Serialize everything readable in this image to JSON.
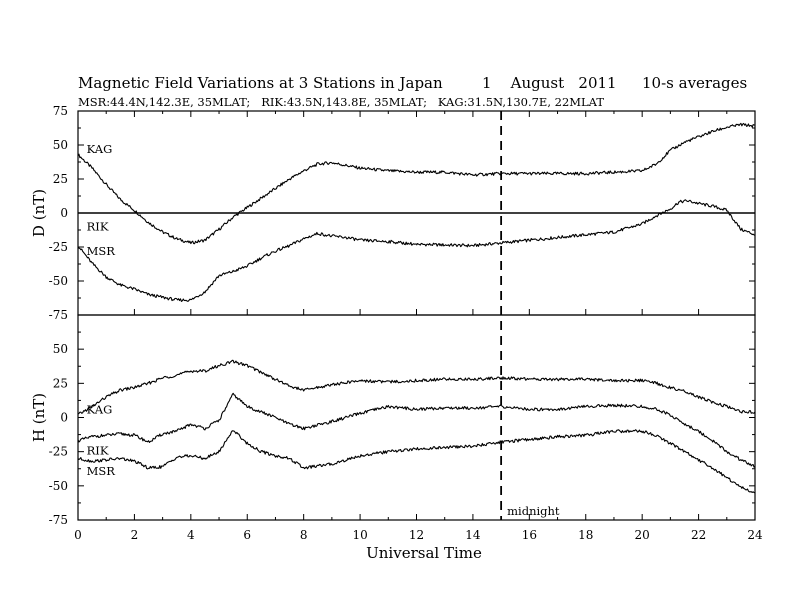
{
  "chart_data": [
    {
      "type": "line",
      "title": "Magnetic Field Variations at 3 Stations in Japan",
      "date_text": "1    August   2011",
      "averaging_text": "10-s averages",
      "subtitle": "MSR:44.4N,142.3E, 35MLAT;   RIK:43.5N,143.8E, 35MLAT;   KAG:31.5N,130.7E, 22MLAT",
      "xlabel": "Universal Time",
      "xlim": [
        0,
        24
      ],
      "xticks": [
        0,
        2,
        4,
        6,
        8,
        10,
        12,
        14,
        16,
        18,
        20,
        22,
        24
      ],
      "grid": false,
      "annotations": [
        {
          "text": "midnight",
          "x": 15,
          "style": "dashed vertical line"
        }
      ],
      "panels": [
        {
          "ylabel": "D (nT)",
          "ylim": [
            -75,
            75
          ],
          "yticks": [
            75,
            50,
            25,
            0,
            -25,
            -50,
            -75
          ],
          "zero_line": true,
          "series": [
            {
              "name": "KAG",
              "x": [
                0,
                0.5,
                1,
                1.5,
                2,
                2.5,
                3,
                3.5,
                4,
                4.5,
                5,
                5.5,
                6,
                6.5,
                7,
                7.5,
                8,
                8.5,
                9,
                9.5,
                10,
                11,
                12,
                13,
                14,
                15,
                16,
                17,
                18,
                19,
                20,
                20.5,
                21,
                21.5,
                22,
                22.5,
                23,
                23.5,
                24
              ],
              "y": [
                43,
                33,
                21,
                10,
                2,
                -7,
                -14,
                -19,
                -22,
                -20,
                -12,
                -3,
                4,
                11,
                18,
                25,
                31,
                36,
                37,
                35,
                33,
                31,
                30,
                30,
                28,
                29,
                29,
                29,
                29,
                30,
                31,
                36,
                46,
                52,
                56,
                60,
                63,
                65,
                64
              ]
            },
            {
              "name": "RIK",
              "x": [
                12,
                14,
                16,
                18,
                19,
                20,
                20.5,
                21,
                21.3,
                21.6,
                22,
                22.5,
                23,
                23.5,
                24
              ],
              "y": [
                -23,
                -24,
                -20,
                -16,
                -14,
                -8,
                -2,
                3,
                8,
                9,
                7,
                5,
                2,
                -12,
                -16
              ]
            },
            {
              "name": "MSR",
              "x": [
                0,
                0.5,
                1,
                1.5,
                2,
                2.5,
                3,
                3.5,
                4,
                4.5,
                5,
                5.5,
                6,
                6.5,
                7,
                7.5,
                8,
                8.5,
                9,
                9.5,
                10,
                11,
                12
              ],
              "y": [
                -24,
                -37,
                -47,
                -53,
                -56,
                -60,
                -62,
                -64,
                -64,
                -58,
                -46,
                -43,
                -39,
                -33,
                -28,
                -24,
                -19,
                -15,
                -17,
                -18,
                -20,
                -21,
                -23
              ]
            }
          ],
          "labels": [
            {
              "text": "KAG",
              "x": 0.2,
              "y": 47
            },
            {
              "text": "RIK",
              "x": 0.2,
              "y": -10
            },
            {
              "text": "MSR",
              "x": 0.2,
              "y": -28
            }
          ]
        },
        {
          "ylabel": "H (nT)",
          "ylim": [
            -75,
            75
          ],
          "yticks": [
            75,
            50,
            25,
            0,
            -25,
            -50,
            -75
          ],
          "zero_line": false,
          "series": [
            {
              "name": "KAG",
              "x": [
                0,
                0.5,
                1,
                1.5,
                2,
                2.5,
                3,
                3.5,
                4,
                4.5,
                5,
                5.5,
                6,
                6.5,
                7,
                7.5,
                8,
                9,
                10,
                11,
                12,
                13,
                14,
                15,
                16,
                17,
                18,
                19,
                20,
                20.5,
                21,
                21.5,
                22,
                22.5,
                23,
                23.5,
                24
              ],
              "y": [
                2,
                8,
                15,
                20,
                22,
                25,
                29,
                31,
                34,
                34,
                38,
                41,
                38,
                33,
                28,
                23,
                20,
                24,
                27,
                26,
                27,
                28,
                28,
                29,
                28,
                28,
                28,
                27,
                27,
                25,
                22,
                19,
                15,
                11,
                8,
                4,
                4
              ]
            },
            {
              "name": "RIK",
              "x": [
                0,
                0.5,
                1,
                1.5,
                2,
                2.5,
                3,
                3.5,
                4,
                4.5,
                5,
                5.5,
                6,
                6.5,
                7,
                7.5,
                8,
                9,
                10,
                11,
                12,
                13,
                14,
                15,
                16,
                17,
                18,
                19,
                20,
                20.5,
                21,
                21.5,
                22,
                22.5,
                23,
                23.5,
                24
              ],
              "y": [
                -17,
                -14,
                -13,
                -12,
                -13,
                -18,
                -12,
                -10,
                -5,
                -8,
                -2,
                17,
                8,
                4,
                0,
                -5,
                -8,
                -3,
                3,
                8,
                6,
                7,
                7,
                8,
                6,
                6,
                8,
                9,
                8,
                6,
                2,
                -5,
                -10,
                -17,
                -25,
                -31,
                -36
              ]
            },
            {
              "name": "MSR",
              "x": [
                0,
                0.5,
                1,
                1.5,
                2,
                2.5,
                3,
                3.5,
                4,
                4.5,
                5,
                5.5,
                6,
                6.5,
                7,
                7.5,
                8,
                9,
                10,
                11,
                12,
                13,
                14,
                15,
                16,
                17,
                18,
                19,
                20,
                20.5,
                21,
                21.5,
                22,
                22.5,
                23,
                23.5,
                24
              ],
              "y": [
                -30,
                -32,
                -31,
                -30,
                -32,
                -37,
                -36,
                -29,
                -28,
                -30,
                -25,
                -9,
                -19,
                -25,
                -28,
                -30,
                -37,
                -34,
                -28,
                -25,
                -23,
                -22,
                -21,
                -18,
                -16,
                -14,
                -13,
                -10,
                -10,
                -13,
                -19,
                -25,
                -31,
                -37,
                -44,
                -51,
                -56
              ]
            }
          ],
          "labels": [
            {
              "text": "KAG",
              "x": 0.2,
              "y": 6
            },
            {
              "text": "RIK",
              "x": 0.2,
              "y": -24
            },
            {
              "text": "MSR",
              "x": 0.2,
              "y": -39
            }
          ]
        }
      ]
    }
  ]
}
